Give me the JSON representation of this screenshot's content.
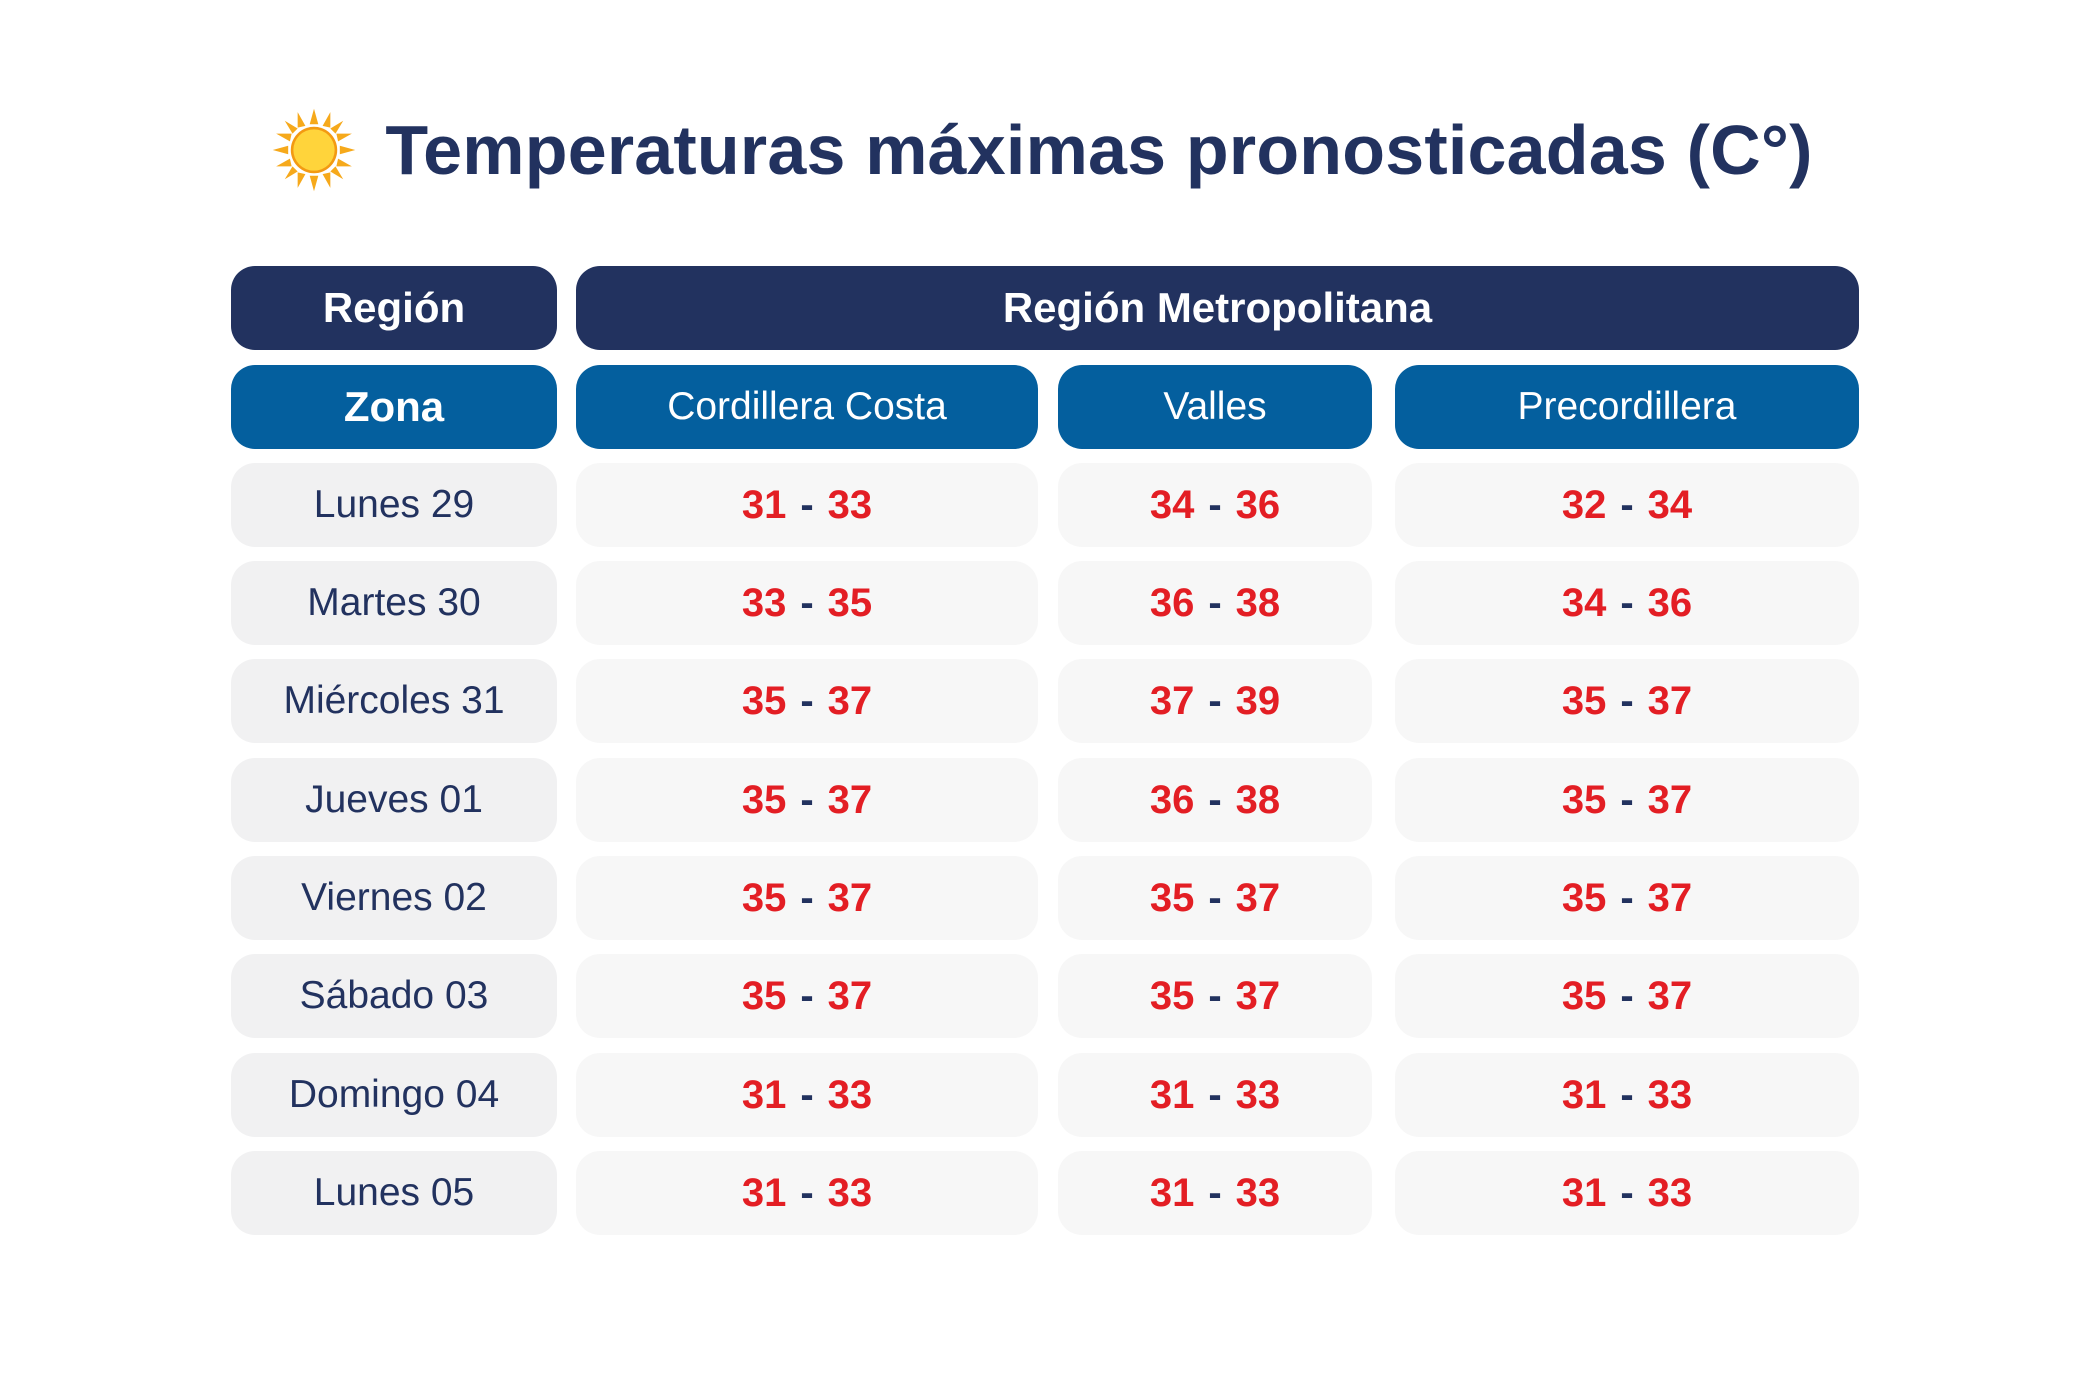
{
  "title": "Temperaturas máximas pronosticadas (C°)",
  "icon": "sun-icon",
  "colors": {
    "navy": "#22325f",
    "blue": "#045f9e",
    "red": "#e31e24",
    "day_bg": "#f1f1f2",
    "value_bg": "#f7f7f7"
  },
  "header": {
    "region_label": "Región",
    "region_value": "Región Metropolitana",
    "zona_label": "Zona",
    "zones": [
      "Cordillera Costa",
      "Valles",
      "Precordillera"
    ]
  },
  "rows": [
    {
      "day": "Lunes 29",
      "values": [
        [
          "31",
          "33"
        ],
        [
          "34",
          "36"
        ],
        [
          "32",
          "34"
        ]
      ]
    },
    {
      "day": "Martes 30",
      "values": [
        [
          "33",
          "35"
        ],
        [
          "36",
          "38"
        ],
        [
          "34",
          "36"
        ]
      ]
    },
    {
      "day": "Miércoles 31",
      "values": [
        [
          "35",
          "37"
        ],
        [
          "37",
          "39"
        ],
        [
          "35",
          "37"
        ]
      ]
    },
    {
      "day": "Jueves 01",
      "values": [
        [
          "35",
          "37"
        ],
        [
          "36",
          "38"
        ],
        [
          "35",
          "37"
        ]
      ]
    },
    {
      "day": "Viernes 02",
      "values": [
        [
          "35",
          "37"
        ],
        [
          "35",
          "37"
        ],
        [
          "35",
          "37"
        ]
      ]
    },
    {
      "day": "Sábado 03",
      "values": [
        [
          "35",
          "37"
        ],
        [
          "35",
          "37"
        ],
        [
          "35",
          "37"
        ]
      ]
    },
    {
      "day": "Domingo 04",
      "values": [
        [
          "31",
          "33"
        ],
        [
          "31",
          "33"
        ],
        [
          "31",
          "33"
        ]
      ]
    },
    {
      "day": "Lunes 05",
      "values": [
        [
          "31",
          "33"
        ],
        [
          "31",
          "33"
        ],
        [
          "31",
          "33"
        ]
      ]
    }
  ],
  "range_separator": "-"
}
